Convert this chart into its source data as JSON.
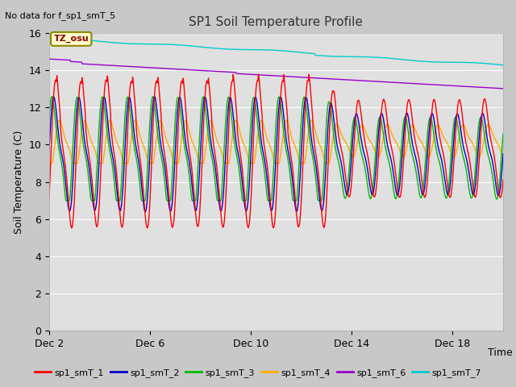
{
  "title": "SP1 Soil Temperature Profile",
  "subtitle": "No data for f_sp1_smT_5",
  "xlabel": "Time",
  "ylabel": "Soil Temperature (C)",
  "ylim": [
    0,
    16
  ],
  "yticks": [
    0,
    2,
    4,
    6,
    8,
    10,
    12,
    14,
    16
  ],
  "tz_label": "TZ_osu",
  "fig_bg_color": "#c8c8c8",
  "plot_bg_color": "#e0e0e0",
  "series_colors": {
    "sp1_smT_1": "#ff0000",
    "sp1_smT_2": "#0000cc",
    "sp1_smT_3": "#00bb00",
    "sp1_smT_4": "#ffaa00",
    "sp1_smT_6": "#9900cc",
    "sp1_smT_7": "#00cccc"
  },
  "xtick_days": [
    2,
    6,
    10,
    14,
    18
  ],
  "xtick_labels": [
    "Dec 2",
    "Dec 6",
    "Dec 10",
    "Dec 14",
    "Dec 18"
  ],
  "n_days": 18,
  "transition_day": 11,
  "gap_start": 11.2,
  "gap_end": 11.8
}
